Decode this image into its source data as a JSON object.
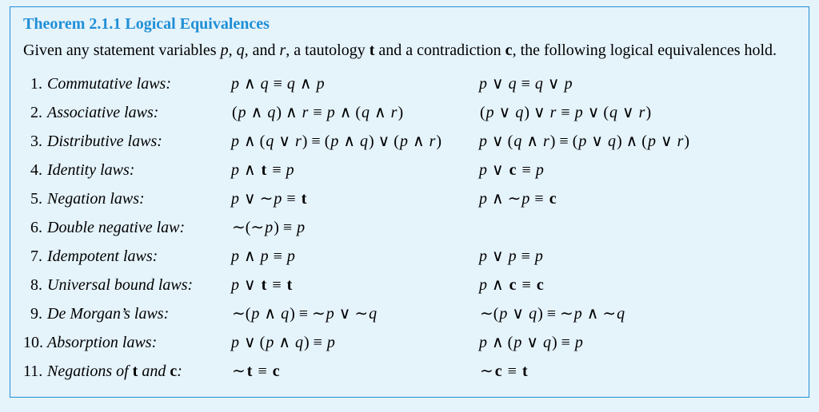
{
  "colors": {
    "background": "#e5f3fb",
    "border": "#1f8fd6",
    "title": "#1f8fd6",
    "text": "#000000"
  },
  "typography": {
    "family": "Times New Roman",
    "base_size_pt": 15,
    "title_size_pt": 15,
    "title_weight": "bold"
  },
  "theorem": {
    "title": "Theorem 2.1.1 Logical Equivalences",
    "intro_parts": {
      "t1": "Given any statement variables ",
      "vars": "p, q,",
      "t2": " and ",
      "var_r": "r",
      "t3": ", a tautology ",
      "t_sym": "t",
      "t4": " and a contradiction ",
      "c_sym": "c",
      "t5": ", the following logical equivalences hold."
    }
  },
  "symbols": {
    "and": "∧",
    "or": "∨",
    "not": "∼",
    "equiv": "≡"
  },
  "laws": [
    {
      "num": "1.",
      "name": "Commutative laws:",
      "left": [
        [
          "p"
        ],
        " ∧ ",
        [
          "q"
        ],
        " ≡ ",
        [
          "q"
        ],
        " ∧ ",
        [
          "p"
        ]
      ],
      "right": [
        [
          "p"
        ],
        " ∨ ",
        [
          "q"
        ],
        " ≡ ",
        [
          "q"
        ],
        " ∨ ",
        [
          "p"
        ]
      ]
    },
    {
      "num": "2.",
      "name": "Associative laws:",
      "left": [
        "(",
        [
          "p"
        ],
        " ∧ ",
        [
          "q"
        ],
        ") ∧ ",
        [
          "r"
        ],
        " ≡ ",
        [
          "p"
        ],
        " ∧ (",
        [
          "q"
        ],
        " ∧ ",
        [
          "r"
        ],
        ")"
      ],
      "right": [
        "(",
        [
          "p"
        ],
        " ∨ ",
        [
          "q"
        ],
        ") ∨ ",
        [
          "r"
        ],
        " ≡ ",
        [
          "p"
        ],
        " ∨ (",
        [
          "q"
        ],
        " ∨ ",
        [
          "r"
        ],
        ")"
      ]
    },
    {
      "num": "3.",
      "name": "Distributive laws:",
      "left": [
        [
          "p"
        ],
        " ∧ (",
        [
          "q"
        ],
        " ∨ ",
        [
          "r"
        ],
        ") ≡ (",
        [
          "p"
        ],
        " ∧ ",
        [
          "q"
        ],
        ") ∨ (",
        [
          "p"
        ],
        " ∧ ",
        [
          "r"
        ],
        ")"
      ],
      "right": [
        [
          "p"
        ],
        " ∨ (",
        [
          "q"
        ],
        " ∧ ",
        [
          "r"
        ],
        ") ≡ (",
        [
          "p"
        ],
        " ∨ ",
        [
          "q"
        ],
        ") ∧ (",
        [
          "p"
        ],
        " ∨ ",
        [
          "r"
        ],
        ")"
      ]
    },
    {
      "num": "4.",
      "name": "Identity laws:",
      "left": [
        [
          "p"
        ],
        " ∧ ",
        [
          "b",
          "t"
        ],
        " ≡ ",
        [
          "p"
        ]
      ],
      "right": [
        [
          "p"
        ],
        " ∨ ",
        [
          "b",
          "c"
        ],
        " ≡ ",
        [
          "p"
        ]
      ]
    },
    {
      "num": "5.",
      "name": "Negation laws:",
      "left": [
        [
          "p"
        ],
        " ∨ ∼",
        [
          "p"
        ],
        " ≡ ",
        [
          "b",
          "t"
        ]
      ],
      "right": [
        [
          "p"
        ],
        " ∧ ∼",
        [
          "p"
        ],
        " ≡ ",
        [
          "b",
          "c"
        ]
      ]
    },
    {
      "num": "6.",
      "name": "Double negative law:",
      "left": [
        "∼(∼",
        [
          "p"
        ],
        ") ≡ ",
        [
          "p"
        ]
      ],
      "right": null
    },
    {
      "num": "7.",
      "name": "Idempotent laws:",
      "left": [
        [
          "p"
        ],
        " ∧ ",
        [
          "p"
        ],
        " ≡ ",
        [
          "p"
        ]
      ],
      "right": [
        [
          "p"
        ],
        " ∨ ",
        [
          "p"
        ],
        " ≡ ",
        [
          "p"
        ]
      ]
    },
    {
      "num": "8.",
      "name": "Universal bound laws:",
      "left": [
        [
          "p"
        ],
        " ∨ ",
        [
          "b",
          "t"
        ],
        " ≡ ",
        [
          "b",
          "t"
        ]
      ],
      "right": [
        [
          "p"
        ],
        " ∧ ",
        [
          "b",
          "c"
        ],
        " ≡ ",
        [
          "b",
          "c"
        ]
      ]
    },
    {
      "num": "9.",
      "name": "De Morgan’s laws:",
      "left": [
        "∼(",
        [
          "p"
        ],
        " ∧ ",
        [
          "q"
        ],
        ") ≡ ∼",
        [
          "p"
        ],
        " ∨ ∼",
        [
          "q"
        ]
      ],
      "right": [
        "∼(",
        [
          "p"
        ],
        " ∨ ",
        [
          "q"
        ],
        ") ≡ ∼",
        [
          "p"
        ],
        " ∧ ∼",
        [
          "q"
        ]
      ]
    },
    {
      "num": "10.",
      "name": "Absorption laws:",
      "left": [
        [
          "p"
        ],
        " ∨ (",
        [
          "p"
        ],
        " ∧ ",
        [
          "q"
        ],
        ") ≡ ",
        [
          "p"
        ]
      ],
      "right": [
        [
          "p"
        ],
        " ∧ (",
        [
          "p"
        ],
        " ∨ ",
        [
          "q"
        ],
        ") ≡ ",
        [
          "p"
        ]
      ]
    },
    {
      "num": "11.",
      "name": "Negations of t and c:",
      "name_parts": [
        "Negations of ",
        [
          "b",
          "t"
        ],
        " and ",
        [
          "b",
          "c"
        ],
        ":"
      ],
      "left": [
        "∼",
        [
          "b",
          "t"
        ],
        " ≡ ",
        [
          "b",
          "c"
        ]
      ],
      "right": [
        "∼",
        [
          "b",
          "c"
        ],
        " ≡ ",
        [
          "b",
          "t"
        ]
      ]
    }
  ]
}
